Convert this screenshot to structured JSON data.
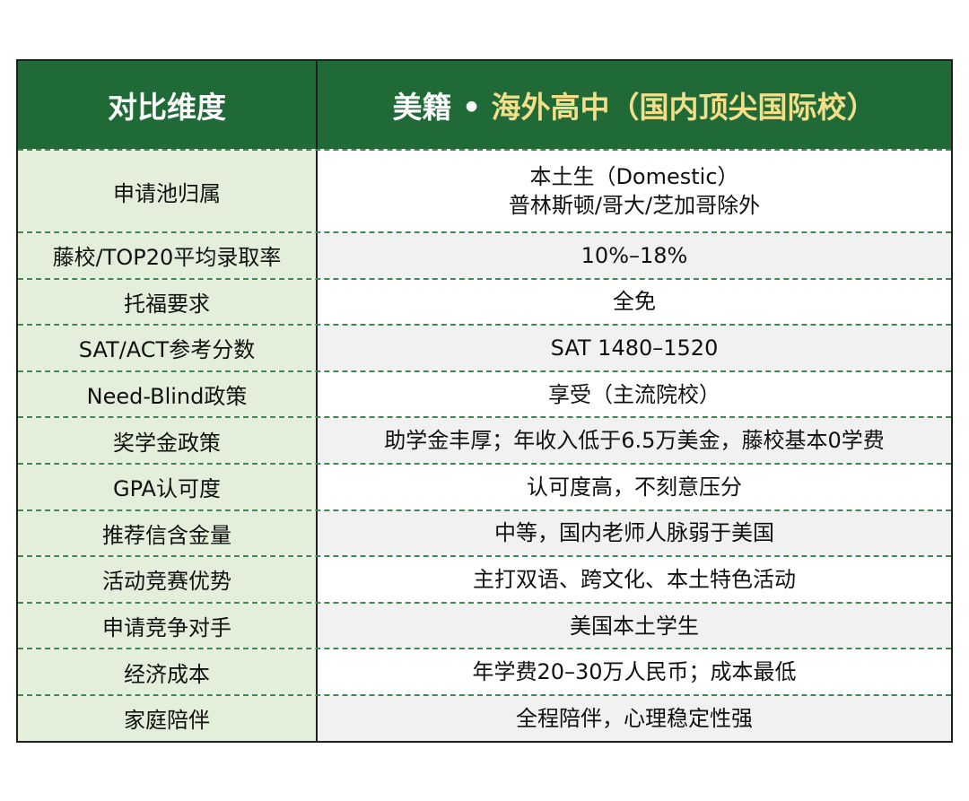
{
  "header": {
    "left": "对比维度",
    "right_prefix": "美籍 • ",
    "right_highlight": "海外高中（国内顶尖国际校）"
  },
  "rows": [
    {
      "dimension": "申请池归属",
      "detail": [
        "本土生（Domestic）",
        "普林斯顿/哥大/芝加哥除外"
      ]
    },
    {
      "dimension": "藤校/TOP20平均录取率",
      "detail": [
        "10%–18%"
      ]
    },
    {
      "dimension": "托福要求",
      "detail": [
        "全免"
      ]
    },
    {
      "dimension": "SAT/ACT参考分数",
      "detail": [
        "SAT 1480–1520"
      ]
    },
    {
      "dimension": "Need-Blind政策",
      "detail": [
        "享受（主流院校）"
      ]
    },
    {
      "dimension": "奖学金政策",
      "detail": [
        "助学金丰厚；年收入低于6.5万美金，藤校基本0学费"
      ]
    },
    {
      "dimension": "GPA认可度",
      "detail": [
        "认可度高，不刻意压分"
      ]
    },
    {
      "dimension": "推荐信含金量",
      "detail": [
        "中等，国内老师人脉弱于美国"
      ]
    },
    {
      "dimension": "活动竞赛优势",
      "detail": [
        "主打双语、跨文化、本土特色活动"
      ]
    },
    {
      "dimension": "申请竞争对手",
      "detail": [
        "美国本土学生"
      ]
    },
    {
      "dimension": "经济成本",
      "detail": [
        "年学费20–30万人民币；成本最低"
      ]
    },
    {
      "dimension": "家庭陪伴",
      "detail": [
        "全程陪伴，心理稳定性强"
      ]
    }
  ]
}
